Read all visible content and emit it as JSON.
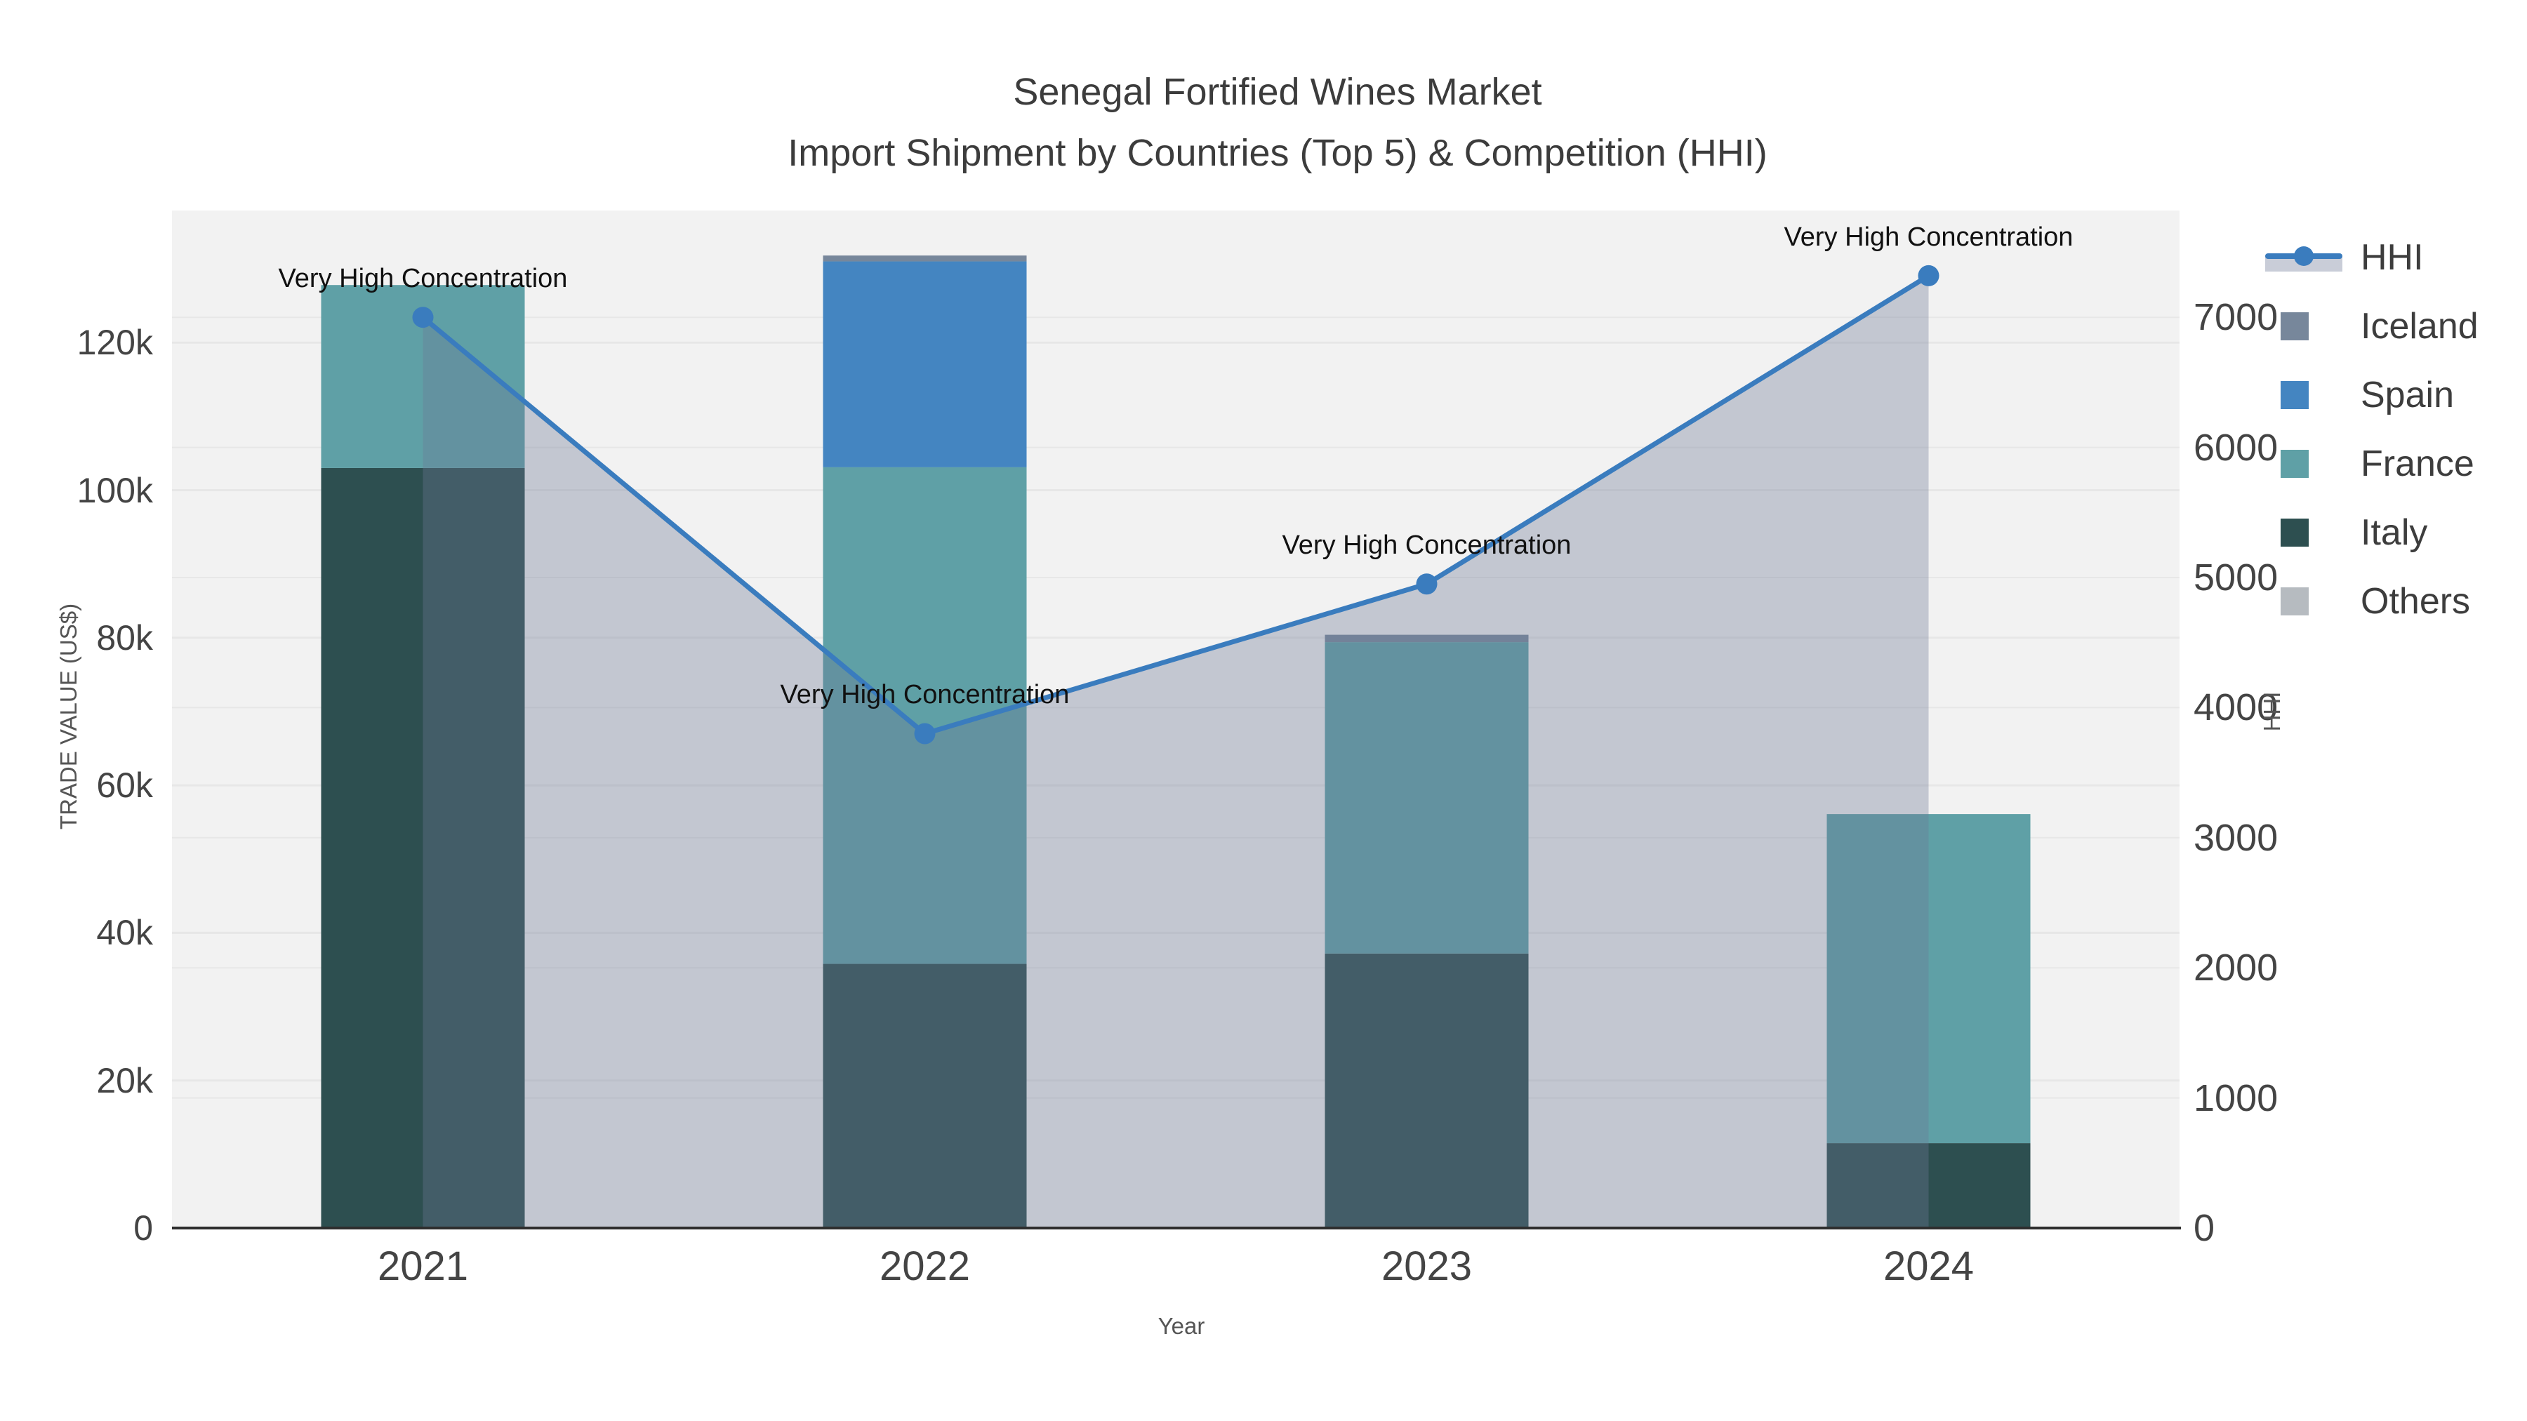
{
  "figure": {
    "title_line1": "Senegal Fortified Wines Market",
    "title_line2": "Import Shipment by Countries (Top 5) & Competition (HHI)"
  },
  "chart_data": {
    "type": "combo: stacked bar + line",
    "categories": [
      "2021",
      "2022",
      "2023",
      "2024"
    ],
    "stack_order": [
      "Italy",
      "France",
      "Spain",
      "Iceland",
      "Others"
    ],
    "series": [
      {
        "name": "Italy",
        "type": "bar",
        "color": "#2d4f50",
        "values": [
          103000,
          35800,
          37200,
          11500
        ]
      },
      {
        "name": "France",
        "type": "bar",
        "color": "#5fa0a6",
        "values": [
          24800,
          67300,
          42200,
          44600
        ]
      },
      {
        "name": "Spain",
        "type": "bar",
        "color": "#4485c1",
        "values": [
          0,
          27900,
          0,
          0
        ]
      },
      {
        "name": "Iceland",
        "type": "bar",
        "color": "#77879b",
        "values": [
          0,
          800,
          1000,
          0
        ]
      },
      {
        "name": "Others",
        "type": "bar",
        "color": "#b6bbc0",
        "values": [
          0,
          0,
          0,
          0
        ]
      },
      {
        "name": "HHI",
        "type": "line",
        "axis": "right",
        "color": "#3a7cbe",
        "area_fill": "rgba(110,120,150,0.35)",
        "values": [
          7000,
          3800,
          4950,
          7320
        ]
      }
    ],
    "annotations": [
      {
        "category": "2021",
        "text": "Very High Concentration"
      },
      {
        "category": "2022",
        "text": "Very High Concentration"
      },
      {
        "category": "2023",
        "text": "Very High Concentration"
      },
      {
        "category": "2024",
        "text": "Very High Concentration"
      }
    ],
    "left_axis": {
      "title": "TRADE VALUE (US$)",
      "tick_labels": [
        "0",
        "20k",
        "40k",
        "60k",
        "80k",
        "100k",
        "120k"
      ],
      "tick_values": [
        0,
        20000,
        40000,
        60000,
        80000,
        100000,
        120000
      ],
      "range": [
        0,
        137900
      ]
    },
    "right_axis": {
      "title": "HHI",
      "tick_labels": [
        "0",
        "1000",
        "2000",
        "3000",
        "4000",
        "5000",
        "6000",
        "7000"
      ],
      "tick_values": [
        0,
        1000,
        2000,
        3000,
        4000,
        5000,
        6000,
        7000
      ],
      "range": [
        0,
        7820
      ]
    },
    "x_axis": {
      "title": "Year"
    },
    "legend": {
      "items": [
        "HHI",
        "Iceland",
        "Spain",
        "France",
        "Italy",
        "Others"
      ]
    },
    "grid": true,
    "legend_position": "right"
  },
  "colors": {
    "plot_bg": "#f2f2f2",
    "gridline": "#e7e7e7",
    "axis_line": "#2e2e2e",
    "title_text": "#3c3c3c",
    "tick_text": "#444444",
    "annotation_text": "#111111"
  }
}
